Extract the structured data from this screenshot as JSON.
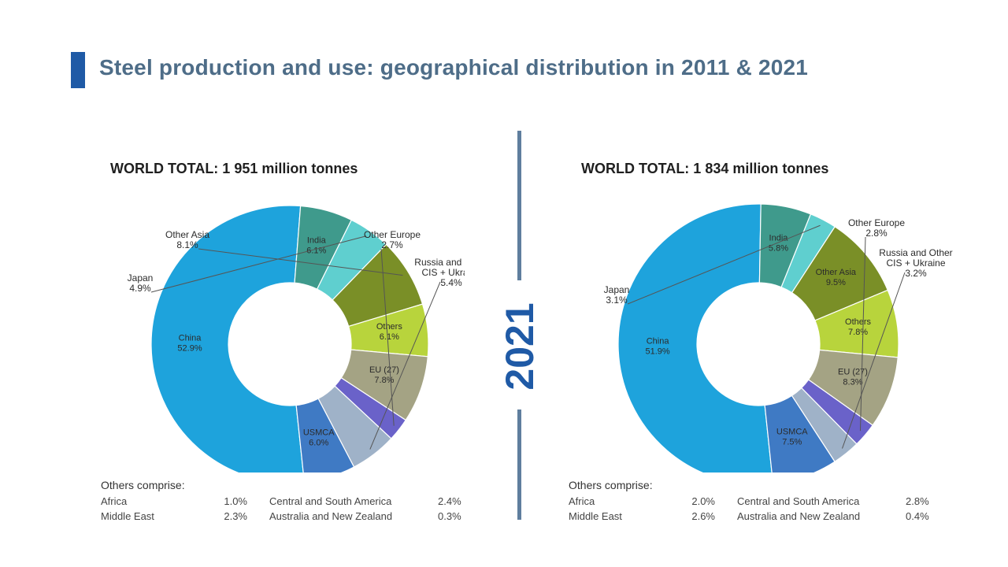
{
  "title": "Steel production and use: geographical distribution in 2011 & 2021",
  "year_divider": "2021",
  "chart_data": [
    {
      "type": "pie",
      "donut": true,
      "title": "WORLD TOTAL: 1 951 million tonnes",
      "slices": [
        {
          "label": "China",
          "value": 52.9,
          "display": "52.9%",
          "color": "#1ea3dc"
        },
        {
          "label": "India",
          "value": 6.1,
          "display": "6.1%",
          "color": "#3f9a8c"
        },
        {
          "label": "Japan",
          "value": 4.9,
          "display": "4.9%",
          "color": "#5fcfcf"
        },
        {
          "label": "Other Asia",
          "value": 8.1,
          "display": "8.1%",
          "color": "#7a8f27"
        },
        {
          "label": "Others",
          "value": 6.1,
          "display": "6.1%",
          "color": "#b8d43c"
        },
        {
          "label": "EU (27)",
          "value": 7.8,
          "display": "7.8%",
          "color": "#a4a384"
        },
        {
          "label": "Other Europe",
          "value": 2.7,
          "display": "2.7%",
          "color": "#6a62c9"
        },
        {
          "label": "Russia and Other CIS + Ukraine",
          "value": 5.4,
          "display": "5.4%",
          "color": "#9fb2c8"
        },
        {
          "label": "USMCA",
          "value": 6.0,
          "display": "6.0%",
          "color": "#3f7ac4"
        }
      ]
    },
    {
      "type": "pie",
      "donut": true,
      "title": "WORLD TOTAL: 1 834 million tonnes",
      "slices": [
        {
          "label": "China",
          "value": 51.9,
          "display": "51.9%",
          "color": "#1ea3dc"
        },
        {
          "label": "India",
          "value": 5.8,
          "display": "5.8%",
          "color": "#3f9a8c"
        },
        {
          "label": "Japan",
          "value": 3.1,
          "display": "3.1%",
          "color": "#5fcfcf"
        },
        {
          "label": "Other Asia",
          "value": 9.5,
          "display": "9.5%",
          "color": "#7a8f27"
        },
        {
          "label": "Others",
          "value": 7.8,
          "display": "7.8%",
          "color": "#b8d43c"
        },
        {
          "label": "EU (27)",
          "value": 8.3,
          "display": "8.3%",
          "color": "#a4a384"
        },
        {
          "label": "Other Europe",
          "value": 2.8,
          "display": "2.8%",
          "color": "#6a62c9"
        },
        {
          "label": "Russia and Other CIS + Ukraine",
          "value": 3.2,
          "display": "3.2%",
          "color": "#9fb2c8"
        },
        {
          "label": "USMCA",
          "value": 7.5,
          "display": "7.5%",
          "color": "#3f7ac4"
        }
      ]
    }
  ],
  "others_left": {
    "heading": "Others comprise:",
    "rows": [
      {
        "name": "Africa",
        "value": "1.0%",
        "name2": "Central and South America",
        "value2": "2.4%"
      },
      {
        "name": "Middle East",
        "value": "2.3%",
        "name2": "Australia and New Zealand",
        "value2": "0.3%"
      }
    ]
  },
  "others_right": {
    "heading": "Others comprise:",
    "rows": [
      {
        "name": "Africa",
        "value": "2.0%",
        "name2": "Central and South America",
        "value2": "2.8%"
      },
      {
        "name": "Middle East",
        "value": "2.6%",
        "name2": "Australia and New Zealand",
        "value2": "0.4%"
      }
    ]
  }
}
